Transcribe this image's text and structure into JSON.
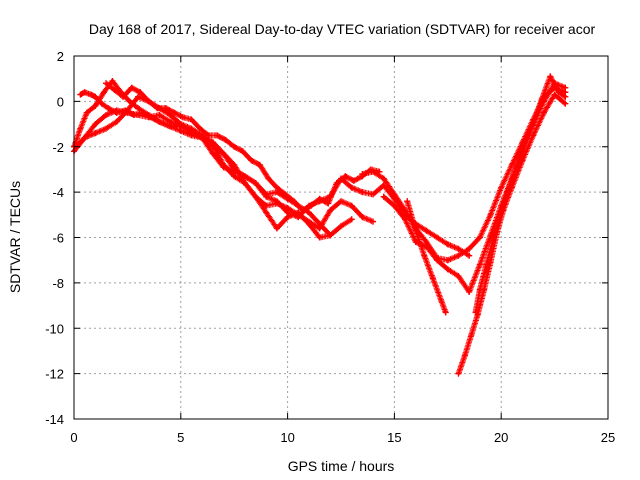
{
  "chart_data": {
    "type": "scatter",
    "title": "Day 168 of 2017, Sidereal Day-to-day VTEC variation (SDTVAR) for receiver acor",
    "xlabel": "GPS time / hours",
    "ylabel": "SDTVAR / TECUs",
    "xlim": [
      0,
      25
    ],
    "ylim": [
      -14,
      2
    ],
    "xticks": [
      0,
      5,
      10,
      15,
      20,
      25
    ],
    "yticks": [
      -14,
      -12,
      -10,
      -8,
      -6,
      -4,
      -2,
      0,
      2
    ],
    "grid": true,
    "marker": "+",
    "color": "#ff0000",
    "series": [
      {
        "name": "trace-1",
        "x": [
          0.0,
          0.5,
          1.0,
          1.5,
          2.0,
          2.5,
          3.0,
          3.5,
          4.0,
          4.5,
          5.0,
          5.5,
          6.0,
          6.5,
          7.0,
          7.5,
          8.0,
          8.5,
          9.0,
          9.5,
          10.0,
          10.5,
          11.0,
          11.5,
          12.0,
          12.5,
          13.0,
          13.5,
          14.0
        ],
        "y": [
          -2.2,
          -1.6,
          -1.0,
          -0.6,
          -0.4,
          -0.5,
          -0.6,
          -0.7,
          -0.6,
          -0.9,
          -1.1,
          -1.3,
          -1.6,
          -2.0,
          -2.3,
          -2.8,
          -3.6,
          -4.2,
          -4.6,
          -4.5,
          -4.7,
          -5.0,
          -5.3,
          -5.6,
          -4.8,
          -4.4,
          -4.6,
          -5.1,
          -5.3
        ]
      },
      {
        "name": "trace-2",
        "x": [
          0.0,
          0.3,
          0.6,
          1.0,
          1.4,
          1.8,
          2.2,
          2.6,
          3.0,
          3.5,
          4.0,
          4.5,
          5.0,
          5.5,
          6.0,
          6.5,
          7.0,
          7.5,
          8.0,
          8.5,
          9.0,
          9.5,
          10.0,
          10.5,
          11.0,
          11.5,
          12.0,
          12.5,
          13.0,
          13.5,
          14.0,
          14.5,
          15.0,
          15.5,
          16.0,
          16.5,
          17.0,
          17.5,
          18.0,
          18.5
        ],
        "y": [
          -2.0,
          -1.2,
          -0.5,
          -0.2,
          0.4,
          0.9,
          0.4,
          0.0,
          -0.3,
          -0.6,
          -0.9,
          -1.1,
          -1.3,
          -1.5,
          -1.6,
          -1.8,
          -2.3,
          -3.0,
          -3.3,
          -3.6,
          -4.2,
          -4.4,
          -4.9,
          -5.1,
          -4.6,
          -4.4,
          -4.2,
          -3.4,
          -3.8,
          -4.0,
          -4.1,
          -3.7,
          -4.3,
          -5.0,
          -5.4,
          -5.7,
          -6.0,
          -6.3,
          -6.5,
          -6.8
        ]
      },
      {
        "name": "trace-3",
        "x": [
          0.2,
          0.5,
          1.0,
          1.5,
          2.0,
          2.5,
          3.0,
          3.5,
          4.0,
          4.5,
          5.0,
          5.5,
          6.0,
          6.5,
          7.0,
          7.5,
          8.0,
          8.5,
          9.0,
          9.5,
          10.0,
          10.5,
          11.0,
          11.5,
          12.0
        ],
        "y": [
          -1.9,
          -1.6,
          -1.4,
          -1.2,
          -0.9,
          -0.4,
          0.2,
          0.0,
          -0.3,
          -0.6,
          -1.0,
          -1.2,
          -1.5,
          -1.9,
          -2.8,
          -3.3,
          -3.6,
          -4.2,
          -4.9,
          -5.6,
          -5.1,
          -4.9,
          -5.4,
          -6.0,
          -5.9
        ]
      },
      {
        "name": "trace-4",
        "x": [
          0.3,
          0.5,
          0.8,
          1.0,
          1.3,
          1.6,
          2.0,
          2.4,
          2.8,
          3.2,
          3.6,
          4.0,
          4.5,
          5.0,
          5.5,
          6.0,
          6.5,
          7.0,
          7.5,
          8.0,
          8.5,
          9.0,
          9.5,
          10.0,
          10.5,
          11.0,
          11.5,
          12.0,
          12.5,
          13.0
        ],
        "y": [
          0.3,
          0.4,
          0.3,
          0.2,
          -0.1,
          -0.3,
          -0.5,
          -0.4,
          -0.6,
          -0.5,
          -0.7,
          -0.9,
          -1.1,
          -1.0,
          -1.4,
          -1.6,
          -2.3,
          -2.9,
          -3.1,
          -3.3,
          -3.6,
          -4.1,
          -4.0,
          -4.3,
          -4.6,
          -4.9,
          -5.4,
          -5.9,
          -5.5,
          -5.2
        ]
      },
      {
        "name": "trace-5",
        "x": [
          1.5,
          1.9,
          2.3,
          2.7,
          3.1,
          3.5,
          3.9,
          4.3,
          4.7,
          5.1,
          5.5,
          5.9,
          6.3,
          6.7,
          7.1,
          7.5,
          7.9,
          8.3,
          8.7,
          9.1,
          9.5,
          9.9,
          10.3,
          10.7,
          11.1,
          11.5,
          11.9,
          12.3,
          12.7,
          13.1,
          13.5,
          13.9,
          14.3
        ],
        "y": [
          0.8,
          0.5,
          0.2,
          0.6,
          0.4,
          0.0,
          -0.3,
          -0.3,
          -0.5,
          -0.7,
          -0.8,
          -1.2,
          -1.5,
          -1.5,
          -1.7,
          -2.0,
          -2.2,
          -2.6,
          -2.8,
          -3.4,
          -3.8,
          -4.1,
          -4.4,
          -4.8,
          -4.6,
          -4.3,
          -4.5,
          -3.6,
          -3.3,
          -3.5,
          -3.3,
          -3.0,
          -3.1
        ]
      },
      {
        "name": "trace-6",
        "x": [
          13.5,
          14.0,
          14.5,
          15.0,
          15.5,
          16.0,
          16.5,
          17.0,
          17.5,
          18.0,
          18.5,
          19.0,
          19.5,
          20.0,
          20.5,
          21.0,
          21.5,
          22.0,
          22.5,
          23.0
        ],
        "y": [
          -3.2,
          -3.1,
          -3.4,
          -4.1,
          -4.8,
          -5.6,
          -6.2,
          -6.9,
          -7.0,
          -6.8,
          -6.5,
          -6.0,
          -5.0,
          -3.8,
          -2.8,
          -1.8,
          -0.8,
          0.2,
          0.6,
          0.4
        ]
      },
      {
        "name": "trace-7",
        "x": [
          14.5,
          15.0,
          15.5,
          16.0,
          16.5,
          17.0,
          17.5,
          18.0,
          18.5,
          19.0,
          19.5,
          20.0,
          20.5,
          21.0,
          21.5,
          22.0,
          22.5,
          23.0
        ],
        "y": [
          -4.2,
          -4.6,
          -5.2,
          -6.2,
          -6.4,
          -7.0,
          -7.4,
          -7.7,
          -8.4,
          -7.2,
          -5.9,
          -4.6,
          -3.4,
          -2.2,
          -1.0,
          0.0,
          0.8,
          0.6
        ]
      },
      {
        "name": "trace-8",
        "x": [
          15.6,
          16.0,
          16.4,
          16.8,
          17.2,
          17.4
        ],
        "y": [
          -4.4,
          -5.7,
          -6.8,
          -7.8,
          -8.8,
          -9.3
        ]
      },
      {
        "name": "trace-9",
        "x": [
          18.0,
          18.3,
          18.6,
          18.9,
          19.2,
          19.5,
          19.8,
          20.1,
          20.5,
          21.0,
          21.5,
          22.0,
          22.5,
          23.0
        ],
        "y": [
          -12.0,
          -11.2,
          -10.3,
          -9.4,
          -8.3,
          -7.1,
          -5.8,
          -4.8,
          -3.8,
          -2.6,
          -1.5,
          -0.5,
          0.3,
          -0.1
        ]
      },
      {
        "name": "trace-10",
        "x": [
          18.8,
          19.0,
          19.3,
          19.6,
          19.9,
          20.3,
          20.7,
          21.1,
          21.5,
          21.9,
          22.3,
          22.7,
          23.0
        ],
        "y": [
          -9.3,
          -8.3,
          -7.2,
          -6.2,
          -5.2,
          -4.0,
          -2.9,
          -1.8,
          -1.0,
          0.1,
          1.1,
          0.4,
          0.2
        ]
      }
    ]
  }
}
